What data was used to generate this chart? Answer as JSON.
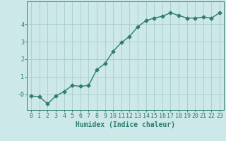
{
  "x": [
    0,
    1,
    2,
    3,
    4,
    5,
    6,
    7,
    8,
    9,
    10,
    11,
    12,
    13,
    14,
    15,
    16,
    17,
    18,
    19,
    20,
    21,
    22,
    23
  ],
  "y": [
    -0.1,
    -0.15,
    -0.55,
    -0.1,
    0.15,
    0.5,
    0.45,
    0.5,
    1.4,
    1.75,
    2.45,
    2.95,
    3.3,
    3.85,
    4.2,
    4.35,
    4.45,
    4.65,
    4.5,
    4.35,
    4.35,
    4.4,
    4.35,
    4.65
  ],
  "line_color": "#2e7d6e",
  "marker": "D",
  "marker_size": 2.5,
  "bg_color": "#cde8e8",
  "grid_color": "#a8cccc",
  "xlabel": "Humidex (Indice chaleur)",
  "xlim": [
    -0.5,
    23.5
  ],
  "ylim": [
    -0.9,
    5.3
  ],
  "yticks": [
    0,
    1,
    2,
    3,
    4
  ],
  "ytick_labels": [
    "-0",
    "1",
    "2",
    "3",
    "4"
  ],
  "xticks": [
    0,
    1,
    2,
    3,
    4,
    5,
    6,
    7,
    8,
    9,
    10,
    11,
    12,
    13,
    14,
    15,
    16,
    17,
    18,
    19,
    20,
    21,
    22,
    23
  ],
  "tick_fontsize": 6,
  "xlabel_fontsize": 7,
  "line_width": 1.0
}
